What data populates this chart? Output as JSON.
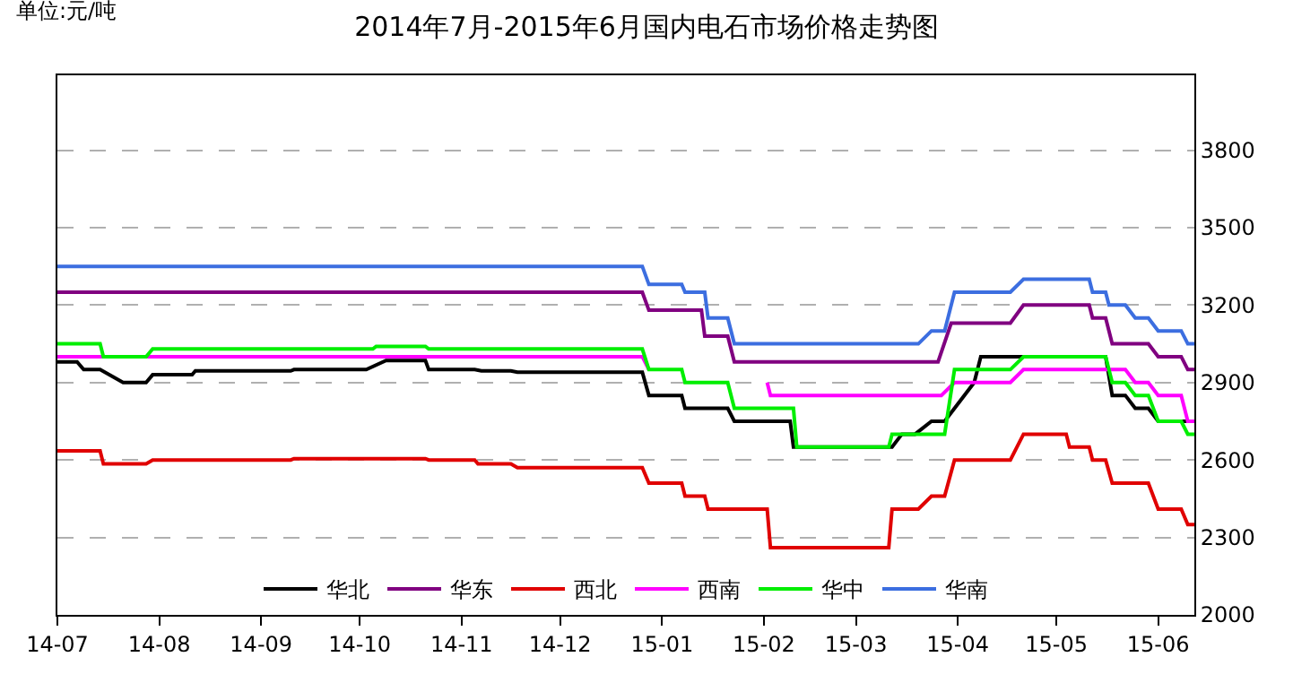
{
  "chart_data": {
    "type": "line",
    "title": "2014年7月-2015年6月国内电石市场价格走势图",
    "annotations": [
      "单位:元/吨"
    ],
    "xlim": [
      "2014-07-01",
      "2015-06-12"
    ],
    "xticks": [
      {
        "value": "2014-07",
        "label": "14-07"
      },
      {
        "value": "2014-08",
        "label": "14-08"
      },
      {
        "value": "2014-09",
        "label": "14-09"
      },
      {
        "value": "2014-10",
        "label": "14-10"
      },
      {
        "value": "2014-11",
        "label": "14-11"
      },
      {
        "value": "2014-12",
        "label": "14-12"
      },
      {
        "value": "2015-01",
        "label": "15-01"
      },
      {
        "value": "2015-02",
        "label": "15-02"
      },
      {
        "value": "2015-03",
        "label": "15-03"
      },
      {
        "value": "2015-04",
        "label": "15-04"
      },
      {
        "value": "2015-05",
        "label": "15-05"
      },
      {
        "value": "2015-06",
        "label": "15-06"
      }
    ],
    "ylim": [
      2000,
      4090
    ],
    "yticks": [
      2000,
      2300,
      2600,
      2900,
      3200,
      3500,
      3800
    ],
    "grid": "y",
    "legend": "bottom",
    "marker": "none",
    "line_style": "solid",
    "series": [
      {
        "name": "华北",
        "color": "#000000",
        "x": [
          "2014-07-01",
          "2014-07-07",
          "2014-07-09",
          "2014-07-14",
          "2014-07-21",
          "2014-07-28",
          "2014-07-30",
          "2014-08-11",
          "2014-08-12",
          "2014-09-10",
          "2014-09-11",
          "2014-10-03",
          "2014-10-09",
          "2014-10-21",
          "2014-10-22",
          "2014-11-05",
          "2014-11-07",
          "2014-11-16",
          "2014-11-18",
          "2014-12-26",
          "2014-12-28",
          "2015-01-07",
          "2015-01-08",
          "2015-01-21",
          "2015-01-23",
          "2015-02-09",
          "2015-02-10",
          "2015-03-12",
          "2015-03-15",
          "2015-03-19",
          "2015-03-24",
          "2015-03-28",
          "2015-04-06",
          "2015-04-08",
          "2015-05-16",
          "2015-05-18",
          "2015-05-22",
          "2015-05-25",
          "2015-05-29",
          "2015-06-01",
          "2015-06-12"
        ],
        "values": [
          2980,
          2980,
          2950,
          2950,
          2900,
          2900,
          2930,
          2930,
          2945,
          2945,
          2950,
          2950,
          2985,
          2985,
          2950,
          2950,
          2945,
          2945,
          2940,
          2940,
          2850,
          2850,
          2800,
          2800,
          2750,
          2750,
          2650,
          2650,
          2700,
          2700,
          2750,
          2750,
          2900,
          3000,
          3000,
          2850,
          2850,
          2800,
          2800,
          2750,
          2750
        ]
      },
      {
        "name": "华东",
        "color": "#800080",
        "x": [
          "2014-07-01",
          "2014-12-26",
          "2014-12-28",
          "2015-01-13",
          "2015-01-14",
          "2015-01-21",
          "2015-01-23",
          "2015-03-26",
          "2015-03-30",
          "2015-04-17",
          "2015-04-21",
          "2015-05-11",
          "2015-05-12",
          "2015-05-16",
          "2015-05-18",
          "2015-05-29",
          "2015-06-01",
          "2015-06-08",
          "2015-06-10",
          "2015-06-12"
        ],
        "values": [
          3250,
          3250,
          3180,
          3180,
          3080,
          3080,
          2980,
          2980,
          3130,
          3130,
          3200,
          3200,
          3150,
          3150,
          3050,
          3050,
          3000,
          3000,
          2950,
          2950
        ]
      },
      {
        "name": "西北",
        "color": "#e00000",
        "x": [
          "2014-07-01",
          "2014-07-14",
          "2014-07-15",
          "2014-07-28",
          "2014-07-30",
          "2014-09-10",
          "2014-09-11",
          "2014-10-21",
          "2014-10-22",
          "2014-11-05",
          "2014-11-06",
          "2014-11-16",
          "2014-11-18",
          "2014-12-26",
          "2014-12-28",
          "2015-01-07",
          "2015-01-08",
          "2015-01-14",
          "2015-01-15",
          "2015-02-02",
          "2015-02-03",
          "2015-03-11",
          "2015-03-12",
          "2015-03-20",
          "2015-03-24",
          "2015-03-28",
          "2015-03-31",
          "2015-04-17",
          "2015-04-21",
          "2015-05-04",
          "2015-05-05",
          "2015-05-11",
          "2015-05-12",
          "2015-05-16",
          "2015-05-18",
          "2015-05-29",
          "2015-06-01",
          "2015-06-08",
          "2015-06-10",
          "2015-06-12"
        ],
        "values": [
          2635,
          2635,
          2585,
          2585,
          2600,
          2600,
          2605,
          2605,
          2600,
          2600,
          2585,
          2585,
          2570,
          2570,
          2510,
          2510,
          2460,
          2460,
          2410,
          2410,
          2260,
          2260,
          2410,
          2410,
          2460,
          2460,
          2600,
          2600,
          2700,
          2700,
          2650,
          2650,
          2600,
          2600,
          2510,
          2510,
          2410,
          2410,
          2350,
          2350
        ]
      },
      {
        "name": "西南",
        "color": "#ff00ff",
        "x": [
          "2014-07-01",
          "2014-12-26",
          "2014-12-28",
          "2015-01-07",
          "2015-01-08",
          "2015-02-02",
          "2015-02-03",
          "2015-03-27",
          "2015-03-31",
          "2015-04-17",
          "2015-04-21",
          "2015-05-22",
          "2015-05-25",
          "2015-05-29",
          "2015-06-01",
          "2015-06-08",
          "2015-06-10",
          "2015-06-12"
        ],
        "values": [
          3000,
          3000,
          2950,
          null,
          null,
          2900,
          2850,
          2850,
          2900,
          2900,
          2950,
          2950,
          2900,
          2900,
          2850,
          2850,
          2750,
          2750
        ]
      },
      {
        "name": "华中",
        "color": "#00ee00",
        "x": [
          "2014-07-01",
          "2014-07-14",
          "2014-07-15",
          "2014-07-28",
          "2014-07-30",
          "2014-10-05",
          "2014-10-06",
          "2014-10-21",
          "2014-10-22",
          "2014-12-26",
          "2014-12-28",
          "2015-01-07",
          "2015-01-08",
          "2015-01-21",
          "2015-01-23",
          "2015-02-10",
          "2015-02-11",
          "2015-03-11",
          "2015-03-12",
          "2015-03-28",
          "2015-03-31",
          "2015-04-17",
          "2015-04-21",
          "2015-05-16",
          "2015-05-18",
          "2015-05-22",
          "2015-05-25",
          "2015-05-29",
          "2015-06-01",
          "2015-06-08",
          "2015-06-10",
          "2015-06-12"
        ],
        "values": [
          3050,
          3050,
          3000,
          3000,
          3030,
          3030,
          3040,
          3040,
          3030,
          3030,
          2950,
          2950,
          2900,
          2900,
          2800,
          2800,
          2650,
          2650,
          2700,
          2700,
          2950,
          2950,
          3000,
          3000,
          2900,
          2900,
          2850,
          2850,
          2750,
          2750,
          2700,
          2700
        ]
      },
      {
        "name": "华南",
        "color": "#3c6ee0",
        "x": [
          "2014-07-01",
          "2014-12-26",
          "2014-12-28",
          "2015-01-07",
          "2015-01-08",
          "2015-01-14",
          "2015-01-15",
          "2015-01-21",
          "2015-01-23",
          "2015-03-20",
          "2015-03-24",
          "2015-03-28",
          "2015-03-31",
          "2015-04-17",
          "2015-04-21",
          "2015-05-11",
          "2015-05-12",
          "2015-05-16",
          "2015-05-17",
          "2015-05-22",
          "2015-05-25",
          "2015-05-29",
          "2015-06-01",
          "2015-06-08",
          "2015-06-10",
          "2015-06-12"
        ],
        "values": [
          3350,
          3350,
          3280,
          3280,
          3250,
          3250,
          3150,
          3150,
          3050,
          3050,
          3100,
          3100,
          3250,
          3250,
          3300,
          3300,
          3250,
          3250,
          3200,
          3200,
          3150,
          3150,
          3100,
          3100,
          3050,
          3050
        ]
      }
    ]
  }
}
